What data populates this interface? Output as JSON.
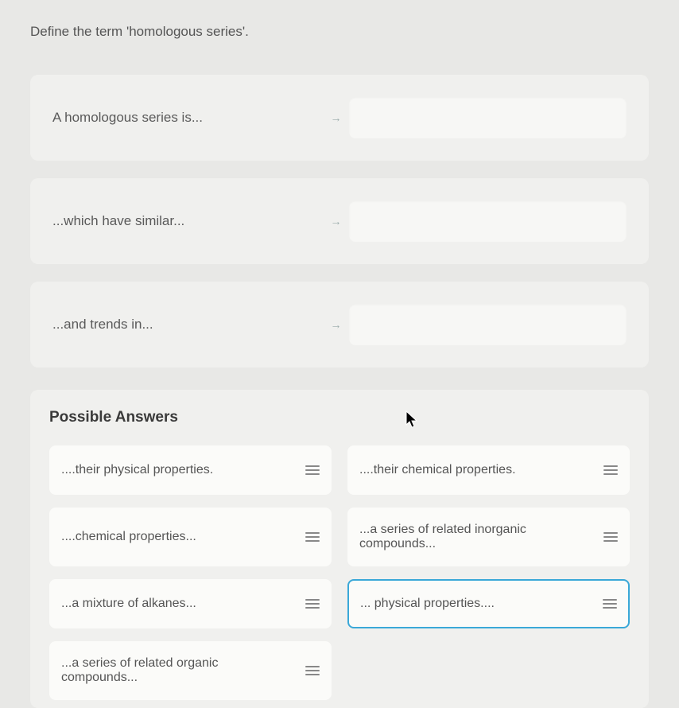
{
  "question": "Define the term 'homologous series'.",
  "prompts": [
    {
      "label": "A homologous series is..."
    },
    {
      "label": "...which have similar..."
    },
    {
      "label": "...and trends in..."
    }
  ],
  "possible_title": "Possible Answers",
  "answers": [
    {
      "text": "....their physical properties.",
      "selected": false
    },
    {
      "text": "....their chemical properties.",
      "selected": false
    },
    {
      "text": "....chemical properties...",
      "selected": false
    },
    {
      "text": "...a series of related inorganic compounds...",
      "selected": false
    },
    {
      "text": "...a mixture of alkanes...",
      "selected": false
    },
    {
      "text": "... physical properties....",
      "selected": true
    },
    {
      "text": "...a series of related organic compounds...",
      "selected": false
    }
  ],
  "colors": {
    "background": "#e8e8e6",
    "card": "#f0f0ee",
    "chip": "#fbfbf9",
    "text": "#555555",
    "selected_border": "#3aa8d8"
  }
}
